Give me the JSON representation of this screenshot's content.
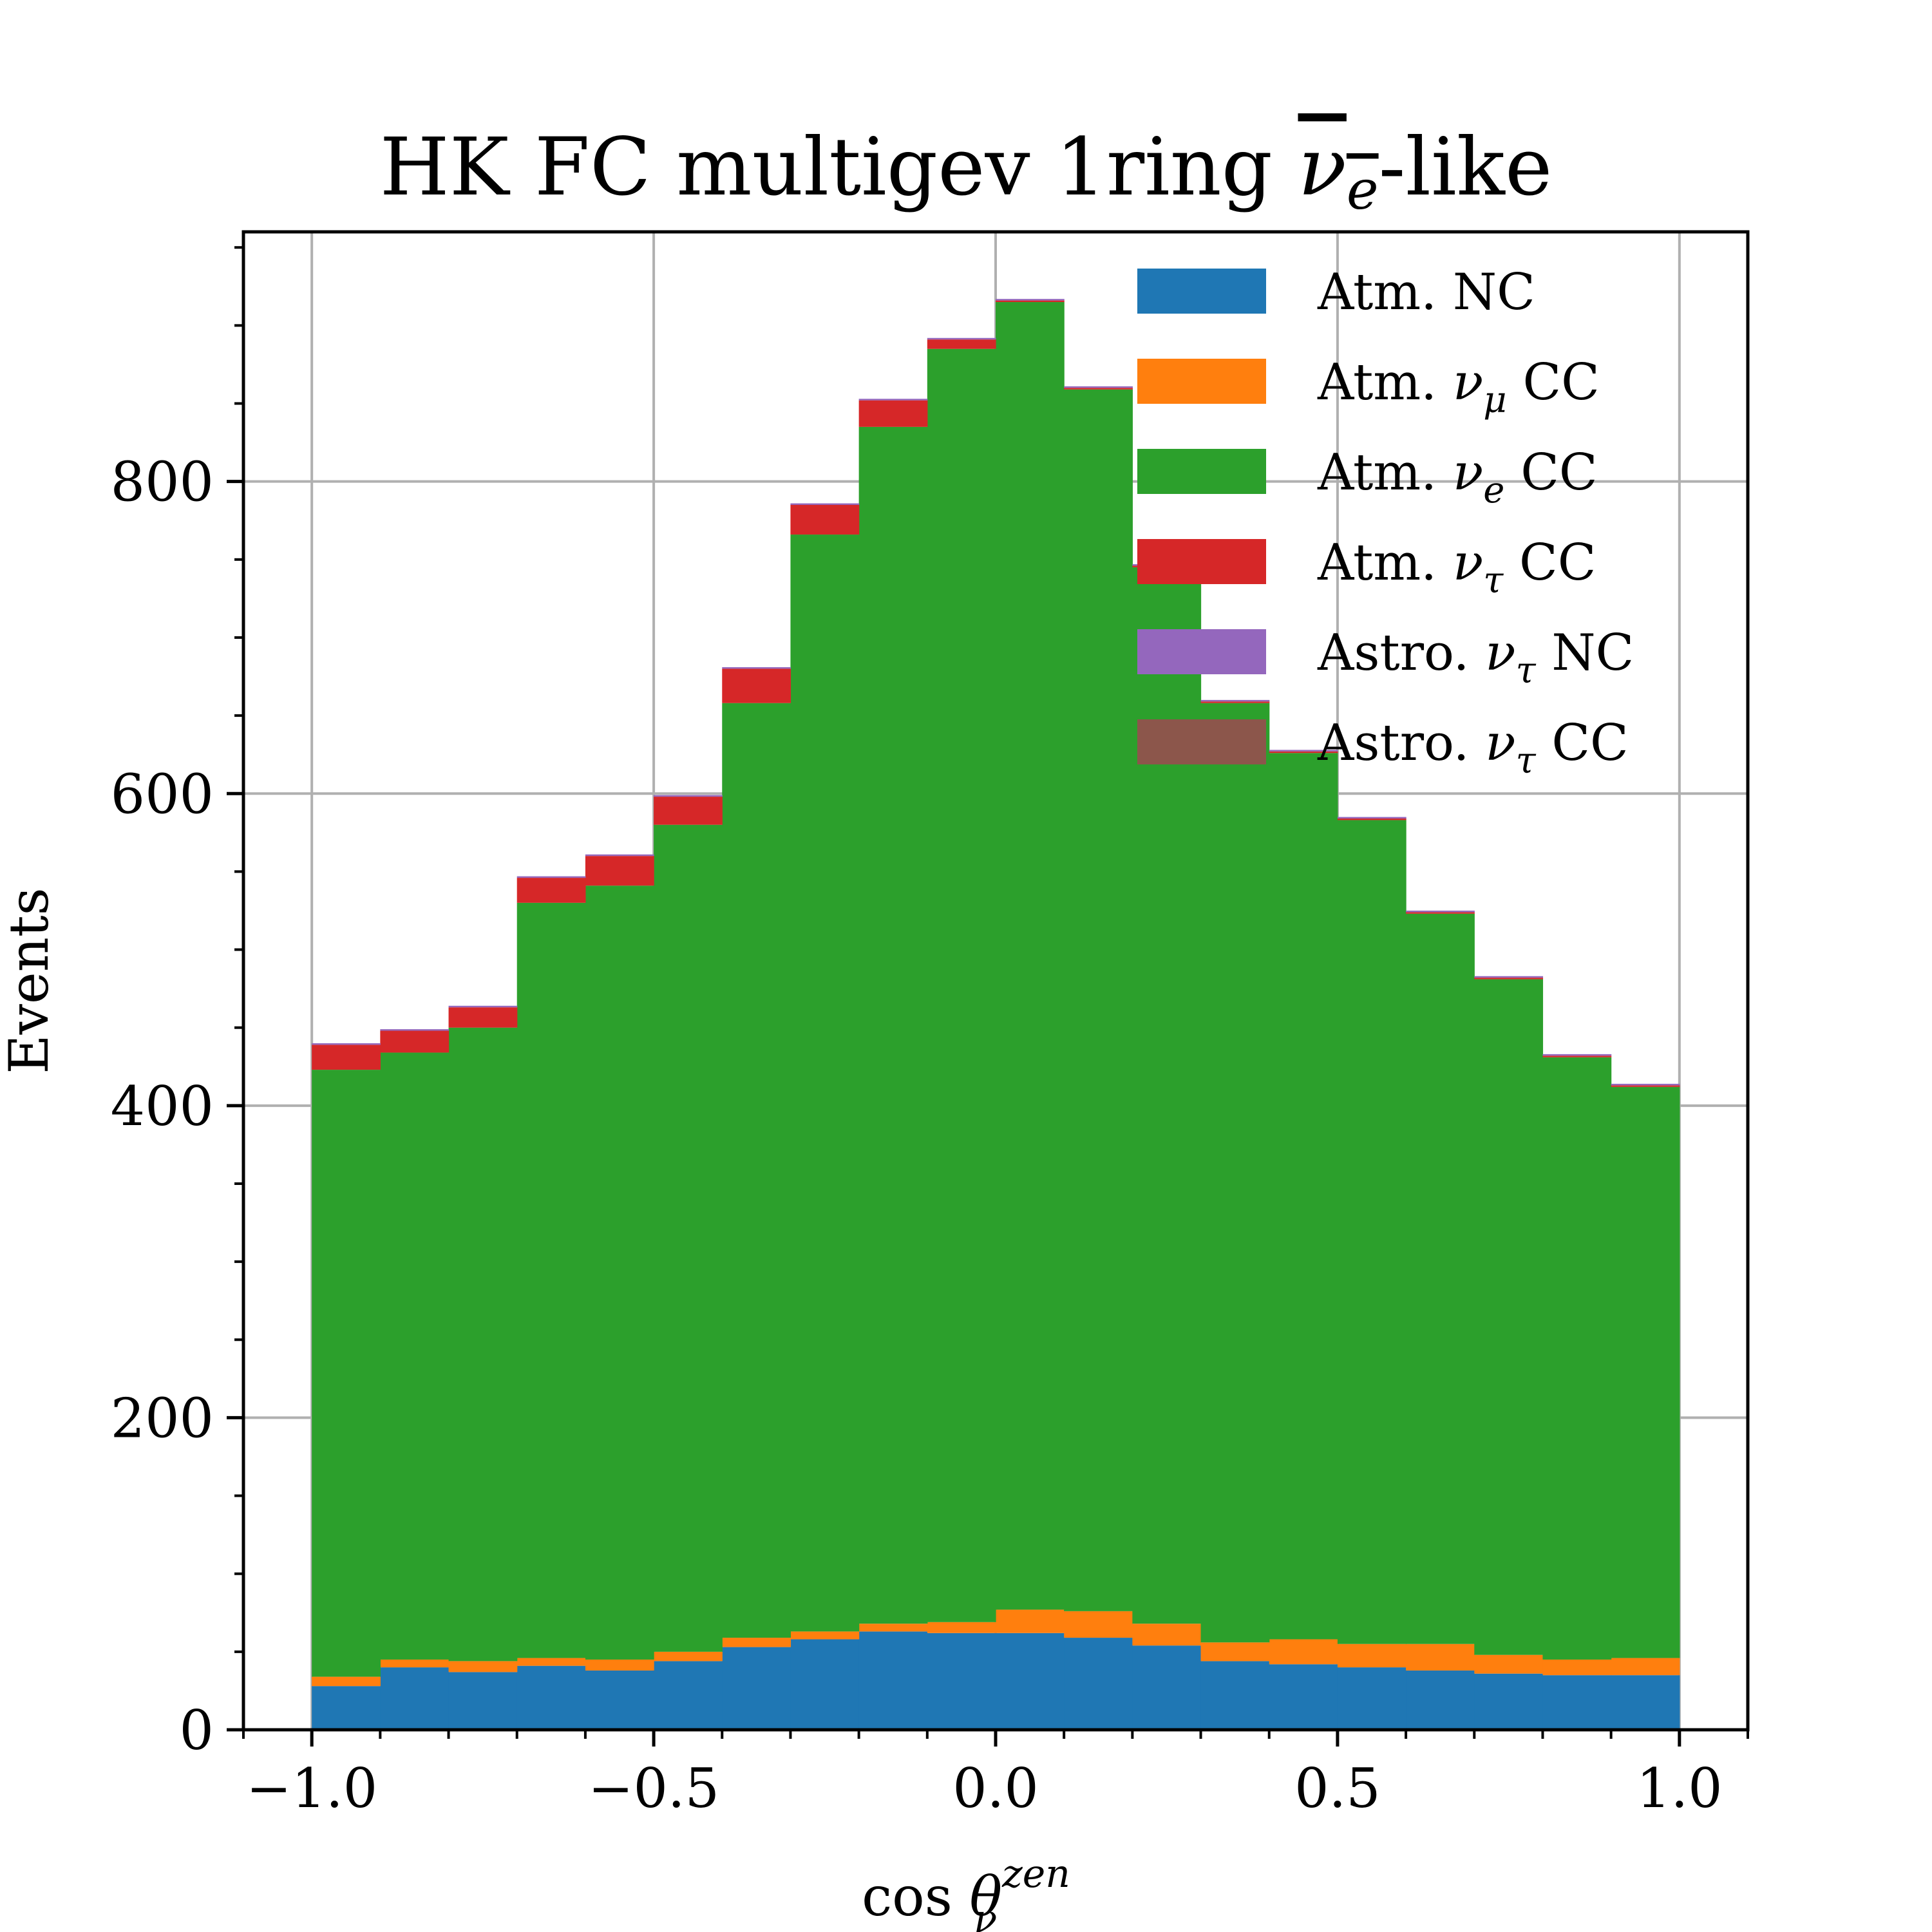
{
  "chart_data": {
    "type": "bar",
    "stacked": true,
    "title": {
      "main": "HK FC multigev 1ring ",
      "symbol": "ν",
      "subscript": "e",
      "suffix": "-like"
    },
    "xlabel": {
      "main": "cos ",
      "symbol": "θ",
      "subscript": "ν",
      "superscript": "zen"
    },
    "ylabel": "Events",
    "xlim": [
      -1.1,
      1.1
    ],
    "ylim": [
      0,
      960
    ],
    "xticks": [
      -1.0,
      -0.5,
      0.0,
      0.5,
      1.0
    ],
    "xtick_labels": [
      "−1.0",
      "−0.5",
      "0.0",
      "0.5",
      "1.0"
    ],
    "yticks": [
      0,
      200,
      400,
      600,
      800
    ],
    "ytick_labels": [
      "0",
      "200",
      "400",
      "600",
      "800"
    ],
    "grid": true,
    "legend_position": "top-right",
    "bin_edges": [
      -1.0,
      -0.9,
      -0.8,
      -0.7,
      -0.6,
      -0.5,
      -0.4,
      -0.3,
      -0.2,
      -0.1,
      0.0,
      0.1,
      0.2,
      0.3,
      0.4,
      0.5,
      0.6,
      0.7,
      0.8,
      0.9,
      1.0
    ],
    "series": [
      {
        "name": {
          "main": "Atm. NC",
          "symbol": "",
          "subscript": "",
          "suffix": ""
        },
        "color": "#1f77b4",
        "values": [
          28,
          40,
          37,
          41,
          38,
          44,
          53,
          58,
          63,
          62,
          62,
          59,
          54,
          44,
          42,
          40,
          38,
          36,
          35,
          35
        ]
      },
      {
        "name": {
          "main": "Atm. ",
          "symbol": "ν",
          "subscript": "μ",
          "suffix": " CC"
        },
        "color": "#ff7f0e",
        "values": [
          6,
          5,
          7,
          5,
          7,
          6,
          6,
          5,
          5,
          7,
          15,
          17,
          14,
          12,
          16,
          15,
          17,
          12,
          10,
          11
        ]
      },
      {
        "name": {
          "main": "Atm. ",
          "symbol": "ν",
          "subscript": "e",
          "suffix": " CC"
        },
        "color": "#2ca02c",
        "values": [
          389,
          389,
          406,
          484,
          496,
          530,
          599,
          703,
          767,
          816,
          838,
          783,
          677,
          602,
          568,
          528,
          468,
          433,
          386,
          366
        ]
      },
      {
        "name": {
          "main": "Atm. ",
          "symbol": "ν",
          "subscript": "τ",
          "suffix": " CC"
        },
        "color": "#d62728",
        "values": [
          16,
          14,
          13,
          16,
          19,
          18,
          22,
          19,
          17,
          6,
          1,
          1,
          1,
          1,
          1,
          1,
          1,
          1,
          1,
          1
        ]
      },
      {
        "name": {
          "main": "Astro. ",
          "symbol": "ν",
          "subscript": "τ",
          "suffix": " NC"
        },
        "color": "#9467bd",
        "values": [
          1,
          1,
          1,
          1,
          1,
          1,
          1,
          1,
          1,
          1,
          1,
          1,
          1,
          1,
          1,
          1,
          1,
          1,
          1,
          1
        ]
      },
      {
        "name": {
          "main": "Astro. ",
          "symbol": "ν",
          "subscript": "τ",
          "suffix": " CC"
        },
        "color": "#8c564b",
        "values": [
          0,
          0,
          0,
          0,
          0,
          0,
          0,
          0,
          0,
          0,
          0,
          0,
          0,
          0,
          0,
          0,
          0,
          0,
          0,
          0
        ]
      }
    ]
  }
}
